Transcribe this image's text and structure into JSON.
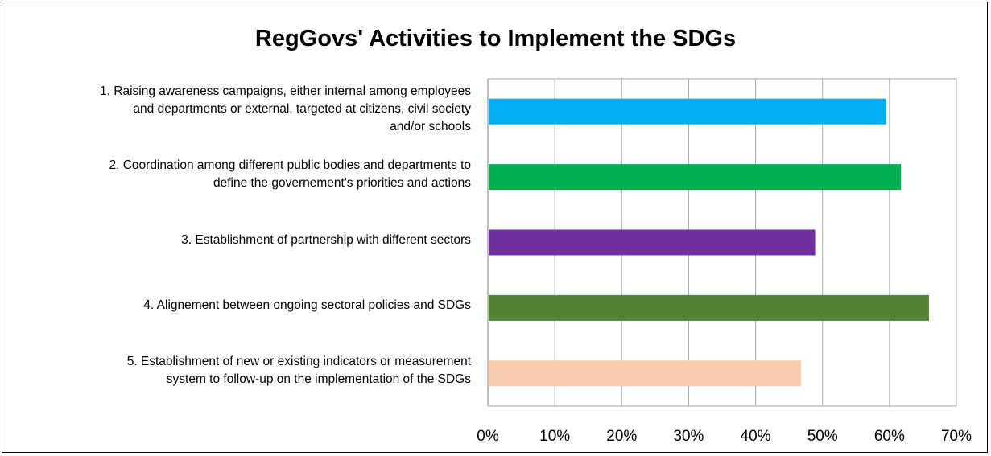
{
  "chart_data": {
    "type": "bar",
    "orientation": "horizontal",
    "title": "RegGovs' Activities to Implement the SDGs",
    "xlabel": "",
    "ylabel": "",
    "categories": [
      [
        "1. Raising awareness campaigns, either internal among employees",
        "and departments or external, targeted at citizens, civil society",
        "and/or schools"
      ],
      [
        "2. Coordination among different public bodies and departments to",
        "define the governement's priorities and actions"
      ],
      [
        "3. Establishment of partnership with different sectors"
      ],
      [
        "4. Alignement between ongoing sectoral policies and SDGs"
      ],
      [
        "5. Establishment of new or existing indicators or measurement",
        "system to follow-up on the implementation of the SDGs"
      ]
    ],
    "values": [
      59.5,
      61.7,
      48.9,
      65.9,
      46.8
    ],
    "unit": "%",
    "xlim": [
      0,
      70
    ],
    "xticks": [
      "0%",
      "10%",
      "20%",
      "30%",
      "40%",
      "50%",
      "60%",
      "70%"
    ],
    "grid": true,
    "legend": "none",
    "colors": [
      "#00b0f0",
      "#00b050",
      "#7030a0",
      "#548235",
      "#f8cbad"
    ]
  }
}
